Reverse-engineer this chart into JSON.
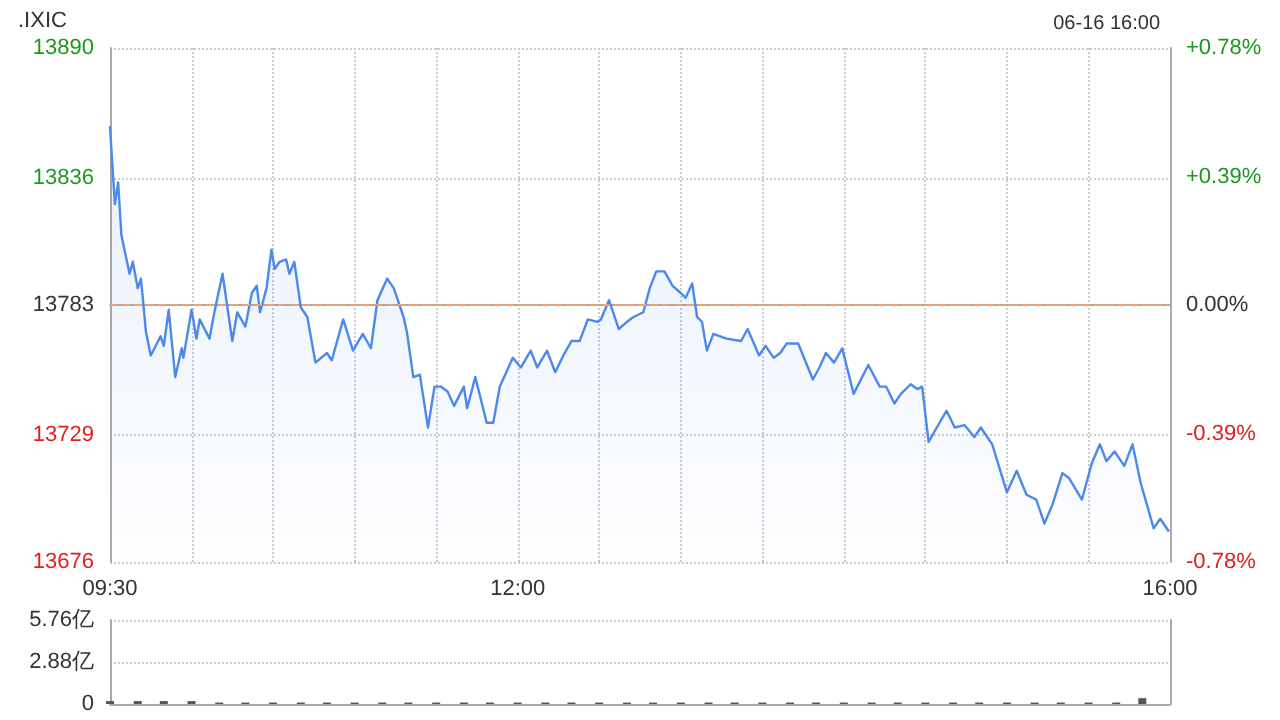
{
  "chart_data": [
    {
      "type": "area",
      "title": ".IXIC",
      "annotations": [
        "06-16 16:00"
      ],
      "series": [
        {
          "color": "#4d88ec",
          "x": [
            9.5,
            9.53,
            9.55,
            9.57,
            9.62,
            9.64,
            9.67,
            9.69,
            9.72,
            9.75,
            9.81,
            9.83,
            9.86,
            9.9,
            9.94,
            9.95,
            10,
            10.03,
            10.05,
            10.11,
            10.14,
            10.19,
            10.25,
            10.28,
            10.33,
            10.37,
            10.4,
            10.42,
            10.46,
            10.49,
            10.51,
            10.54,
            10.58,
            10.6,
            10.63,
            10.67,
            10.71,
            10.76,
            10.83,
            10.86,
            10.93,
            10.99,
            11.05,
            11.1,
            11.14,
            11.2,
            11.24,
            11.3,
            11.32,
            11.36,
            11.4,
            11.45,
            11.49,
            11.53,
            11.57,
            11.61,
            11.67,
            11.69,
            11.74,
            11.81,
            11.85,
            11.89,
            11.97,
            12.02,
            12.08,
            12.12,
            12.18,
            12.23,
            12.28,
            12.33,
            12.38,
            12.43,
            12.49,
            12.51,
            12.56,
            12.62,
            12.67,
            12.71,
            12.77,
            12.81,
            12.85,
            12.9,
            12.95,
            13,
            13.03,
            13.07,
            13.1,
            13.13,
            13.16,
            13.2,
            13.28,
            13.37,
            13.41,
            13.48,
            13.52,
            13.57,
            13.61,
            13.65,
            13.72,
            13.81,
            13.85,
            13.89,
            13.94,
            13.99,
            14.06,
            14.15,
            14.22,
            14.26,
            14.31,
            14.35,
            14.41,
            14.45,
            14.48,
            14.52,
            14.57,
            14.63,
            14.68,
            14.74,
            14.8,
            14.84,
            14.91,
            15,
            15.06,
            15.12,
            15.18,
            15.23,
            15.28,
            15.34,
            15.38,
            15.46,
            15.52,
            15.57,
            15.61,
            15.66,
            15.72,
            15.77,
            15.82,
            15.9,
            15.94,
            15.99
          ],
          "values": [
            13857,
            13825,
            13834,
            13812,
            13796,
            13801,
            13790,
            13794,
            13772,
            13762,
            13770,
            13766,
            13781,
            13753,
            13765,
            13761,
            13781,
            13769,
            13777,
            13769,
            13780,
            13796,
            13768,
            13780,
            13774,
            13788,
            13791,
            13780,
            13790,
            13806,
            13798,
            13801,
            13802,
            13796,
            13801,
            13782,
            13778,
            13759,
            13763,
            13760,
            13777,
            13764,
            13771,
            13765,
            13785,
            13794,
            13790,
            13778,
            13772,
            13753,
            13754,
            13732,
            13749,
            13749,
            13747,
            13741,
            13749,
            13740,
            13753,
            13734,
            13734,
            13749,
            13761,
            13757,
            13764,
            13757,
            13764,
            13755,
            13762,
            13768,
            13768,
            13777,
            13776,
            13777,
            13785,
            13773,
            13776,
            13778,
            13780,
            13790,
            13797,
            13797,
            13791,
            13788,
            13786,
            13792,
            13778,
            13776,
            13764,
            13771,
            13769,
            13768,
            13773,
            13762,
            13766,
            13761,
            13763,
            13767,
            13767,
            13752,
            13757,
            13763,
            13759,
            13765,
            13746,
            13758,
            13749,
            13749,
            13742,
            13746,
            13750,
            13748,
            13749,
            13726,
            13732,
            13739,
            13732,
            13733,
            13728,
            13732,
            13725,
            13705,
            13714,
            13704,
            13702,
            13692,
            13700,
            13713,
            13711,
            13702,
            13717,
            13725,
            13718,
            13722,
            13716,
            13725,
            13709,
            13690,
            13694,
            13689
          ]
        }
      ],
      "xlim": [
        9.5,
        16
      ],
      "xticks": [
        {
          "value": 9.5,
          "label": "09:30"
        },
        {
          "value": 10,
          "label": null
        },
        {
          "value": 10.5,
          "label": null
        },
        {
          "value": 11,
          "label": null
        },
        {
          "value": 11.5,
          "label": null
        },
        {
          "value": 12,
          "label": "12:00"
        },
        {
          "value": 12.5,
          "label": null
        },
        {
          "value": 13,
          "label": null
        },
        {
          "value": 13.5,
          "label": null
        },
        {
          "value": 14,
          "label": null
        },
        {
          "value": 14.5,
          "label": null
        },
        {
          "value": 15,
          "label": null
        },
        {
          "value": 15.5,
          "label": null
        },
        {
          "value": 16,
          "label": "16:00"
        }
      ],
      "ylim": [
        13676,
        13890
      ],
      "yticks": [
        13676,
        13729,
        13783,
        13836,
        13890
      ],
      "y2lim": [
        -0.78,
        0.78
      ],
      "y2ticks": [
        {
          "value": -0.78,
          "label": "-0.78%"
        },
        {
          "value": -0.39,
          "label": "-0.39%"
        },
        {
          "value": 0,
          "label": "0.00%"
        },
        {
          "value": 0.39,
          "label": "+0.39%"
        },
        {
          "value": 0.78,
          "label": "+0.78%"
        }
      ],
      "ref_lines": [
        {
          "axis": "y",
          "value": 13783,
          "color": "#f0a070",
          "line_style": "dashed"
        }
      ],
      "grid": true,
      "marker": "none",
      "line_style": "solid"
    },
    {
      "type": "bar",
      "tick_labels": "y",
      "series": [
        {
          "color": "#555555",
          "x": [
            9.5,
            9.67,
            9.83,
            10,
            10.17,
            10.33,
            10.5,
            10.67,
            10.83,
            11,
            11.17,
            11.33,
            11.5,
            11.67,
            11.83,
            12,
            12.17,
            12.33,
            12.5,
            12.67,
            12.83,
            13,
            13.17,
            13.33,
            13.5,
            13.67,
            13.83,
            14,
            14.17,
            14.33,
            14.5,
            14.67,
            14.83,
            15,
            15.17,
            15.33,
            15.5,
            15.67,
            15.83
          ],
          "values": [
            0.2,
            0.2,
            0.2,
            0.2,
            0.1,
            0.1,
            0.1,
            0.1,
            0.1,
            0.1,
            0.1,
            0.1,
            0.1,
            0.1,
            0.1,
            0.1,
            0.1,
            0.1,
            0.1,
            0.1,
            0.1,
            0.1,
            0.1,
            0.1,
            0.1,
            0.1,
            0.1,
            0.1,
            0.1,
            0.1,
            0.1,
            0.1,
            0.1,
            0.1,
            0.1,
            0.1,
            0.1,
            0.1,
            0.4
          ]
        }
      ],
      "xlim": [
        9.5,
        16
      ],
      "ylim": [
        0,
        5.76
      ],
      "yticks": [
        0,
        {
          "value": 2.88,
          "label": "2.88亿"
        },
        {
          "value": 5.76,
          "label": "5.76亿"
        }
      ],
      "grid": "y"
    }
  ]
}
